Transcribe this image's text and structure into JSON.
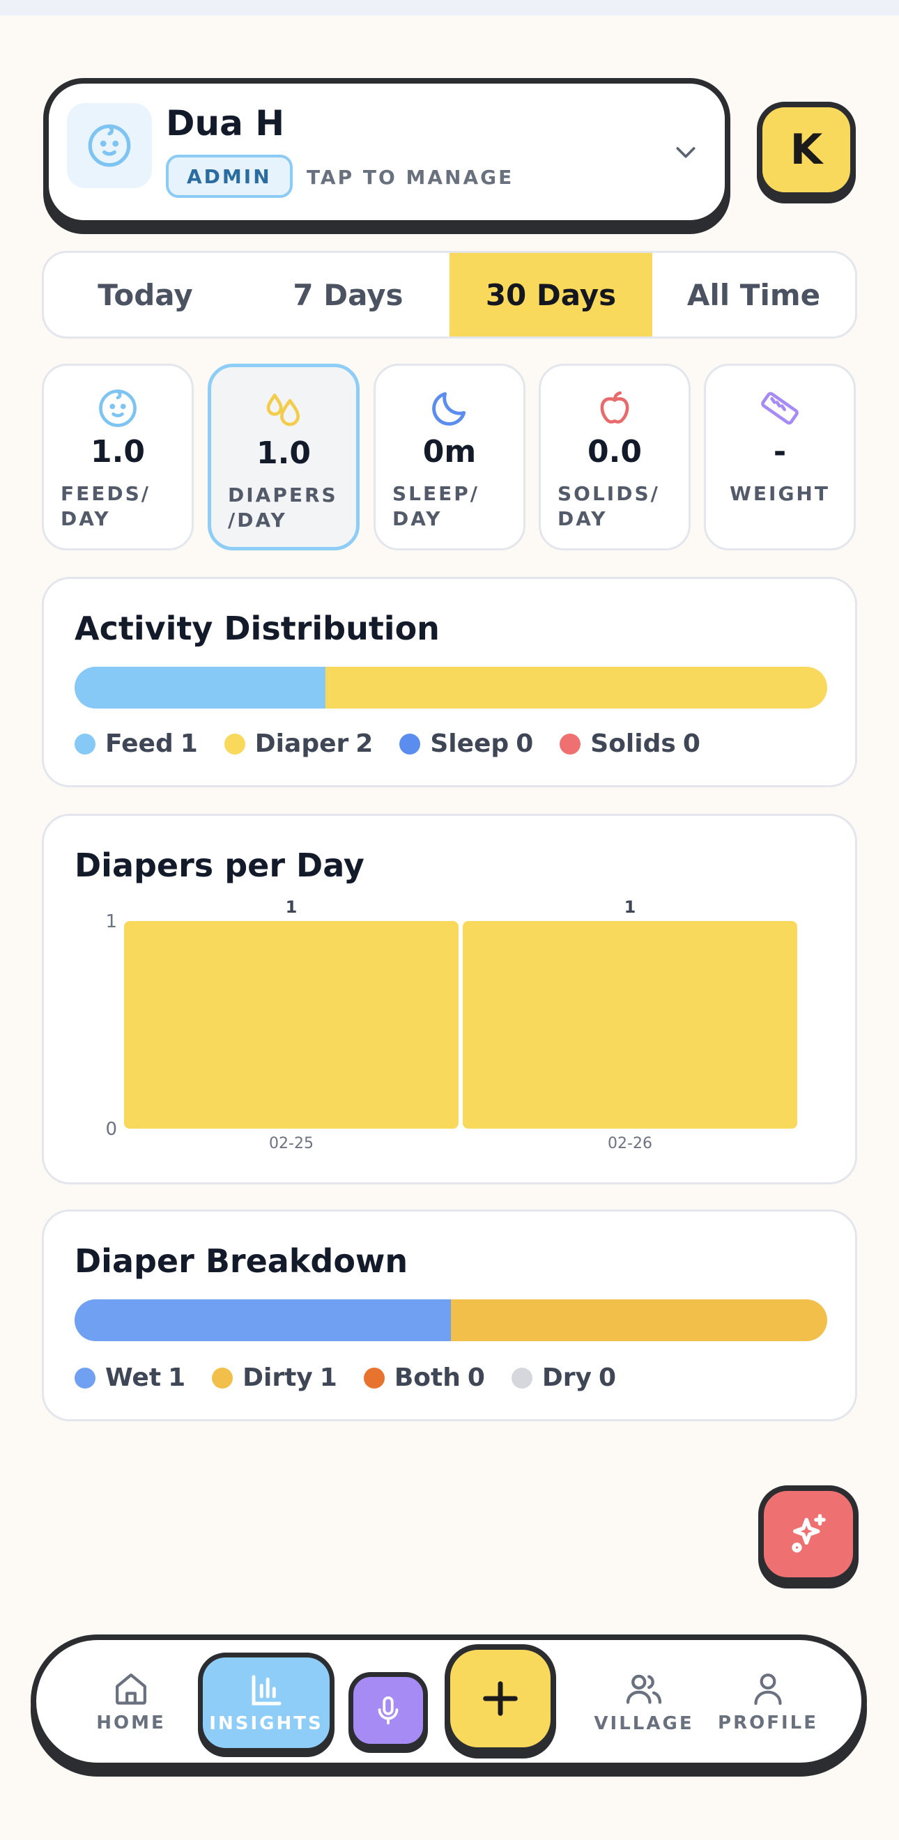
{
  "profile": {
    "name": "Dua H",
    "role_badge": "ADMIN",
    "manage_hint": "TAP TO MANAGE",
    "user_initial": "K"
  },
  "range_tabs": {
    "items": [
      {
        "label": "Today"
      },
      {
        "label": "7 Days"
      },
      {
        "label": "30 Days"
      },
      {
        "label": "All Time"
      }
    ],
    "selected": "30 Days"
  },
  "stats": [
    {
      "icon": "baby-face-icon",
      "value": "1.0",
      "label": "FEEDS/\nDAY",
      "color": "#7EC4F2"
    },
    {
      "icon": "droplets-icon",
      "value": "1.0",
      "label": "DIAPERS\n/DAY",
      "color": "#F2CC4A",
      "selected": true
    },
    {
      "icon": "moon-icon",
      "value": "0m",
      "label": "SLEEP/\nDAY",
      "color": "#5B8DEF"
    },
    {
      "icon": "apple-icon",
      "value": "0.0",
      "label": "SOLIDS/\nDAY",
      "color": "#E96A6A"
    },
    {
      "icon": "ruler-icon",
      "value": "-",
      "label": "WEIGHT",
      "color": "#A78BF4"
    }
  ],
  "activity_distribution": {
    "title": "Activity Distribution",
    "items": [
      {
        "name": "Feed",
        "count": "1",
        "color": "#86C8F6"
      },
      {
        "name": "Diaper",
        "count": "2",
        "color": "#F9D95C"
      },
      {
        "name": "Sleep",
        "count": "0",
        "color": "#5B8DEF"
      },
      {
        "name": "Solids",
        "count": "0",
        "color": "#EE7070"
      }
    ]
  },
  "diapers_per_day": {
    "title": "Diapers per Day"
  },
  "chart_data": {
    "type": "bar",
    "categories": [
      "02-25",
      "02-26"
    ],
    "values": [
      1,
      1
    ],
    "title": "Diapers per Day",
    "xlabel": "",
    "ylabel": "",
    "ylim": [
      0,
      1
    ],
    "yticks": [
      "1",
      "0"
    ],
    "bar_color": "#F9D95C",
    "grid": false
  },
  "diaper_breakdown": {
    "title": "Diaper Breakdown",
    "items": [
      {
        "name": "Wet",
        "count": "1",
        "color": "#6FA0F2"
      },
      {
        "name": "Dirty",
        "count": "1",
        "color": "#F2C04A"
      },
      {
        "name": "Both",
        "count": "0",
        "color": "#E8732E"
      },
      {
        "name": "Dry",
        "count": "0",
        "color": "#D5D7DC"
      }
    ]
  },
  "fab": {
    "icon": "sparkle-icon"
  },
  "nav": {
    "home": "HOME",
    "insights": "INSIGHTS",
    "mic": "mic-icon",
    "add": "plus-icon",
    "village": "VILLAGE",
    "profile": "PROFILE"
  }
}
